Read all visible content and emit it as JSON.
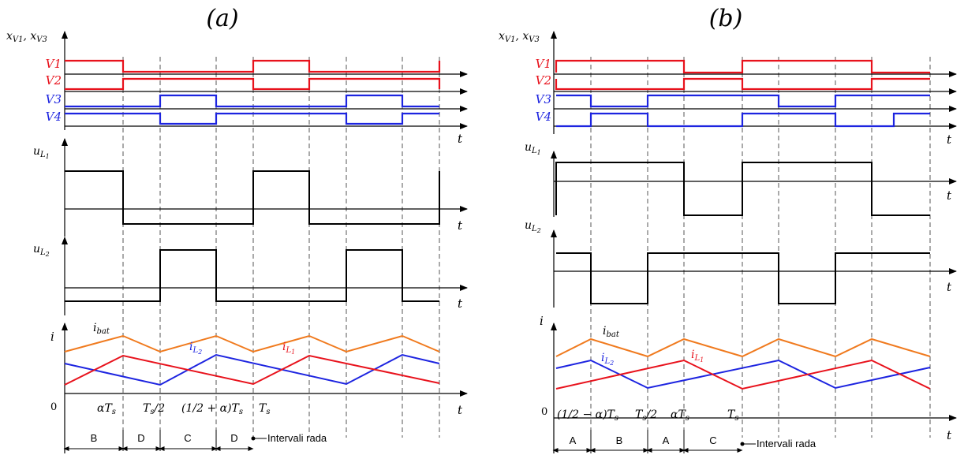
{
  "panel_a": {
    "title": "(a)",
    "ylabel_switch": "x_V1, x_V3",
    "gate_labels": [
      "V1",
      "V2",
      "V3",
      "V4"
    ],
    "ylabel_uL1": "u_L1",
    "ylabel_uL2": "u_L2",
    "ylabel_i": "i",
    "t_label": "t",
    "origin": "0",
    "current_labels": [
      "i_bat",
      "i_L2",
      "i_L1"
    ],
    "time_ticks": [
      "αT_s",
      "T_s/2",
      "(1/2+α)T_s",
      "T_s"
    ],
    "intervals": [
      "B",
      "D",
      "C",
      "D"
    ],
    "intervals_label": "Intervali rada"
  },
  "panel_b": {
    "title": "(b)",
    "ylabel_switch": "x_V1, x_V3",
    "gate_labels": [
      "V1",
      "V2",
      "V3",
      "V4"
    ],
    "ylabel_uL1": "u_L1",
    "ylabel_uL2": "u_L2",
    "ylabel_i": "i",
    "t_label": "t",
    "origin": "0",
    "current_labels": [
      "i_bat",
      "i_L2",
      "i_L1"
    ],
    "time_ticks": [
      "(1/2−α)T_s",
      "T_s/2",
      "αT_s",
      "T_s"
    ],
    "intervals": [
      "A",
      "B",
      "A",
      "C"
    ],
    "intervals_label": "Intervali rada"
  },
  "colors": {
    "red": "#e8121c",
    "blue": "#1d24e0",
    "orange": "#f07a1e",
    "black": "#000000"
  }
}
